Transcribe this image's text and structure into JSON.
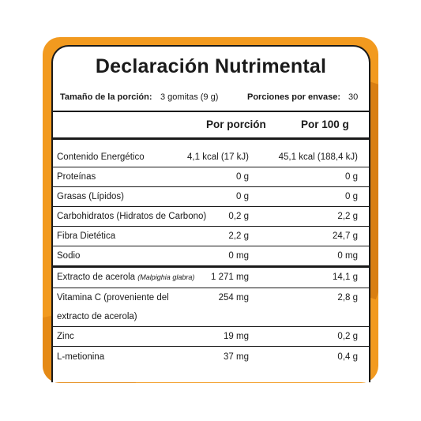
{
  "label": {
    "title": "Declaración Nutrimental",
    "serving_size_label": "Tamaño de la porción:",
    "serving_size_value": "3 gomitas (9 g)",
    "servings_label": "Porciones por envase:",
    "servings_value": "30",
    "col_per_serving": "Por porción",
    "col_per_100g": "Por 100 g",
    "rows": [
      {
        "name": "Contenido Energético",
        "per_serving": "4,1 kcal (17 kJ)",
        "per_100g": "45,1 kcal (188,4 kJ)"
      },
      {
        "name": "Proteínas",
        "per_serving": "0 g",
        "per_100g": "0 g"
      },
      {
        "name": "Grasas (Lípidos)",
        "per_serving": "0 g",
        "per_100g": "0 g"
      },
      {
        "name": "Carbohidratos (Hidratos de Carbono)",
        "per_serving": "0,2 g",
        "per_100g": "2,2 g"
      },
      {
        "name": "Fibra Dietética",
        "per_serving": "2,2 g",
        "per_100g": "24,7 g"
      },
      {
        "name": "Sodio",
        "per_serving": "0 mg",
        "per_100g": "0 mg"
      },
      {
        "name": "Extracto de acerola",
        "name_sci": "(Malpighia glabra)",
        "per_serving": "1 271 mg",
        "per_100g": "14,1 g"
      },
      {
        "name": "Vitamina C (proveniente del",
        "name_line2": "extracto de acerola)",
        "per_serving": "254 mg",
        "per_100g": "2,8 g"
      },
      {
        "name": "Zinc",
        "per_serving": "19 mg",
        "per_100g": "0,2 g"
      },
      {
        "name": "L-metionina",
        "per_serving": "37 mg",
        "per_100g": "0,4 g"
      }
    ]
  },
  "colors": {
    "frame": "#f29a1f",
    "ink": "#1a1a1a",
    "panel": "#ffffff"
  }
}
